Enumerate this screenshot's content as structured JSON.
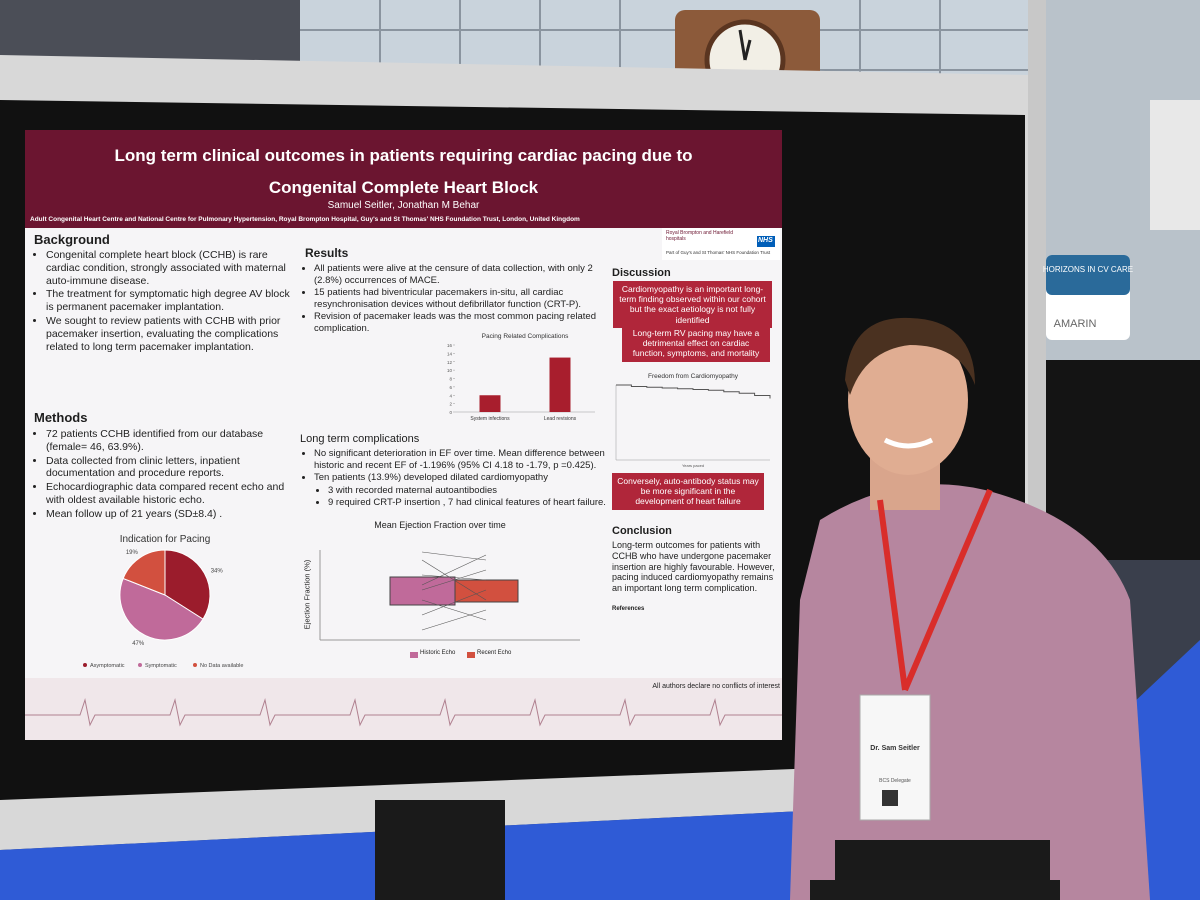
{
  "poster": {
    "title_line1": "Long term clinical outcomes in patients requiring cardiac pacing due to",
    "title_line2": "Congenital Complete Heart Block",
    "authors": "Samuel Seitler, Jonathan M Behar",
    "affiliation": "Adult Congenital Heart Centre and National Centre for Pulmonary Hypertension, Royal Brompton Hospital, Guy's and St Thomas' NHS Foundation Trust, London, United Kingdom",
    "logo": {
      "org": "Royal Brompton and Harefield hospitals",
      "nhs": "NHS",
      "trust": "Part of Guy's and St Thomas' NHS Foundation Trust"
    },
    "background": {
      "heading": "Background",
      "bullets": [
        "Congenital complete heart block (CCHB) is rare cardiac condition, strongly associated with maternal auto-immune disease.",
        "The treatment for symptomatic high degree AV block is permanent pacemaker implantation.",
        "We sought to review patients with CCHB with prior pacemaker insertion, evaluating the complications related to long term pacemaker implantation."
      ]
    },
    "methods": {
      "heading": "Methods",
      "bullets": [
        "72 patients CCHB identified from our database (female= 46, 63.9%).",
        "Data collected from clinic letters, inpatient documentation and procedure reports.",
        "Echocardiographic data compared recent echo and with oldest available historic echo.",
        "Mean follow up of 21 years (SD±8.4) ."
      ]
    },
    "pie_chart": {
      "type": "pie",
      "title": "Indication for Pacing",
      "categories": [
        "Asymptomatic",
        "Symptomatic",
        "No Data available"
      ],
      "values": [
        34,
        47,
        19
      ],
      "value_labels": [
        "34%",
        "47%",
        "19%"
      ],
      "colors": [
        "#9b1c2c",
        "#c06a9a",
        "#d2503f"
      ]
    },
    "results": {
      "heading": "Results",
      "bullets": [
        "All patients were alive at the censure of data collection, with only 2 (2.8%) occurrences of MACE.",
        "15 patients had biventricular pacemakers in-situ, all cardiac resynchronisation devices without defibrillator function (CRT-P).",
        "Revision of pacemaker leads was the most common pacing related complication."
      ]
    },
    "bar_chart": {
      "type": "bar",
      "title": "Pacing Related Complications",
      "categories": [
        "System infections",
        "Lead revisions"
      ],
      "values": [
        4,
        13
      ],
      "color": "#a81e2d",
      "ylim": [
        0,
        16
      ],
      "yticks": [
        0,
        2,
        4,
        6,
        8,
        10,
        12,
        14,
        16
      ]
    },
    "complications": {
      "heading": "Long term complications",
      "bullets": [
        "No significant deterioration in EF over time. Mean difference between historic and recent EF of -1.196% (95% CI 4.18 to -1.79, p =0.425).",
        "Ten patients (13.9%) developed dilated cardiomyopathy"
      ],
      "sub_bullets": [
        "3 with recorded maternal autoantibodies",
        "9 required CRT-P insertion , 7 had clinical features of heart failure."
      ]
    },
    "ef_chart": {
      "title": "Mean Ejection Fraction over time",
      "y_label": "Ejection Fraction (%)",
      "legend": [
        "Historic Echo",
        "Recent Echo"
      ]
    },
    "discussion": {
      "heading": "Discussion",
      "box1": "Cardiomyopathy is an important long-term finding observed within our cohort but the exact aetiology is not fully identified",
      "box2": "Long-term RV pacing may have a detrimental effect on cardiac function, symptoms, and mortality",
      "box3": "Conversely, auto-antibody status may be more significant in the development of heart failure"
    },
    "survival_chart": {
      "type": "line",
      "title": "Freedom from Cardiomyopathy",
      "x_label": "Years paced",
      "x": [
        0,
        2,
        4,
        6,
        8,
        10,
        12,
        14,
        16,
        18,
        20
      ],
      "values": [
        1,
        0.98,
        0.97,
        0.96,
        0.95,
        0.94,
        0.93,
        0.91,
        0.89,
        0.86,
        0.82
      ],
      "xlim": [
        0,
        20
      ],
      "ylim": [
        0,
        1
      ],
      "color": "#555555"
    },
    "conclusion": {
      "heading": "Conclusion",
      "text": "Long-term outcomes for patients with CCHB who have undergone pacemaker insertion are highly favourable. However, pacing induced cardiomyopathy remains an important long term complication."
    },
    "references_heading": "References",
    "footer": "All authors declare no conflicts of interest"
  },
  "badge": {
    "name": "Dr. Sam Seitler",
    "role": "BCS Delegate"
  },
  "banner": {
    "text": "HORIZONS IN CV CARE",
    "brand": "AMARIN"
  }
}
